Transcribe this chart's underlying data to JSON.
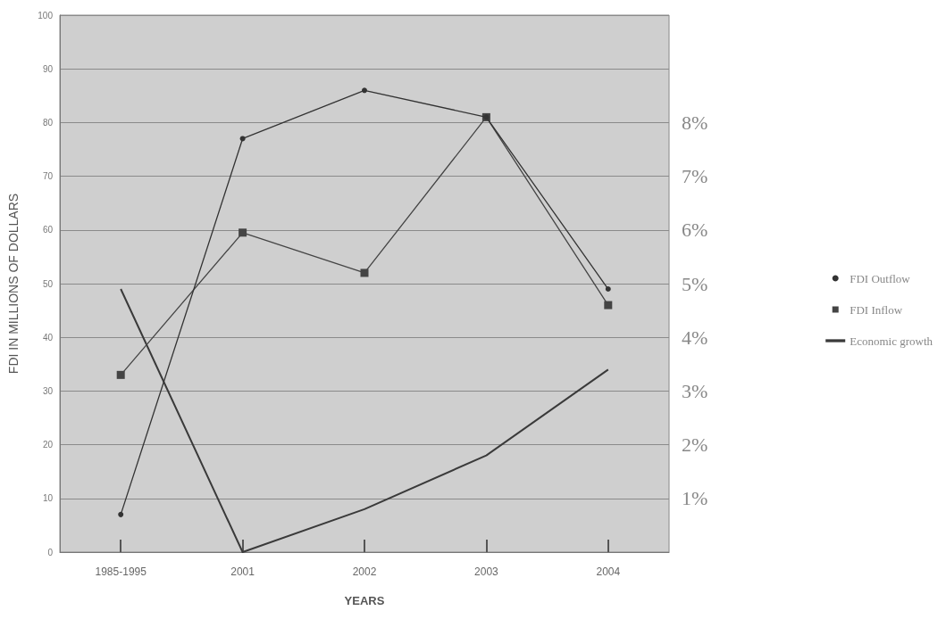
{
  "chart_data": {
    "type": "line",
    "xlabel": "YEARS",
    "ylabel": "FDI IN MILLIONS OF DOLLARS",
    "categories": [
      "1985-1995",
      "2001",
      "2002",
      "2003",
      "2004"
    ],
    "ylim": [
      0,
      100
    ],
    "yticks": [
      0,
      10,
      20,
      30,
      40,
      50,
      60,
      70,
      80,
      90,
      100
    ],
    "y2lim": [
      0,
      10
    ],
    "y2ticks": [
      {
        "value": 1,
        "label": "1%"
      },
      {
        "value": 2,
        "label": "2%"
      },
      {
        "value": 3,
        "label": "3%"
      },
      {
        "value": 4,
        "label": "4%"
      },
      {
        "value": 5,
        "label": "5%"
      },
      {
        "value": 6,
        "label": "6%"
      },
      {
        "value": 7,
        "label": "7%"
      },
      {
        "value": 8,
        "label": "8%"
      }
    ],
    "grid": "y",
    "legend": "right",
    "series": [
      {
        "name": "FDI Outflow",
        "color": "#333333",
        "marker": "circle",
        "values": [
          7,
          77,
          86,
          81,
          49
        ]
      },
      {
        "name": "FDI Inflow",
        "color": "#444444",
        "marker": "square",
        "values": [
          33,
          59.5,
          52,
          81,
          46
        ]
      },
      {
        "name": "Economic growth",
        "color": "#3a3a3a",
        "marker": "none",
        "axis": "y2",
        "values": [
          4.9,
          0,
          0.8,
          1.8,
          3.4
        ]
      }
    ]
  }
}
